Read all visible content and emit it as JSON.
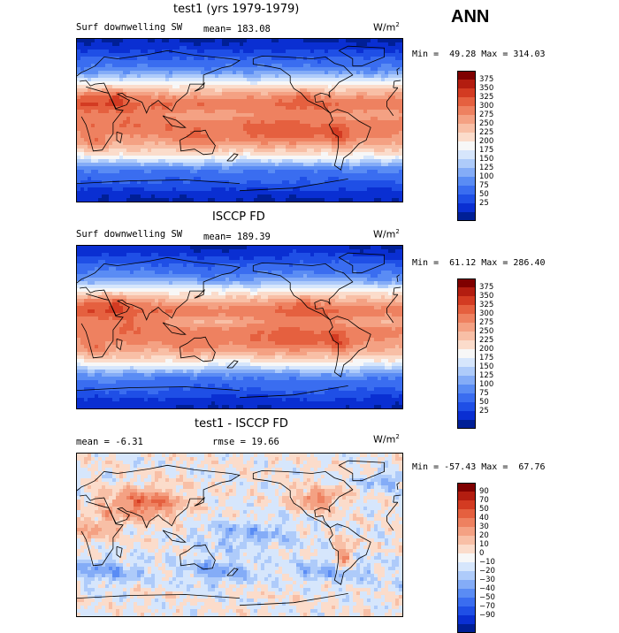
{
  "season": "ANN",
  "palette_sw": [
    "#001f96",
    "#0a2fd2",
    "#1f4fe6",
    "#3a6df0",
    "#5a8cf4",
    "#84acf7",
    "#aecbfa",
    "#d6e6fc",
    "#f7f7f7",
    "#fbdccb",
    "#f8bfa6",
    "#f4a183",
    "#ee8160",
    "#e5603f",
    "#d33b22",
    "#b31d10",
    "#7f0000"
  ],
  "panels": [
    {
      "title": "test1 (yrs 1979-1979)",
      "left_text": "Surf downwelling SW",
      "mid_text": "mean= 183.08",
      "units_base": "W/m",
      "units_exp": "2",
      "minmax": "Min =  49.28 Max = 314.03",
      "kind": "model"
    },
    {
      "title": "ISCCP FD",
      "left_text": "Surf downwelling SW",
      "mid_text": "mean= 189.39",
      "units_base": "W/m",
      "units_exp": "2",
      "minmax": "Min =  61.12 Max = 286.40",
      "kind": "obs"
    },
    {
      "title": "test1 - ISCCP FD",
      "left_text": "mean =  -6.31",
      "mid_text": "rmse =  19.66",
      "units_base": "W/m",
      "units_exp": "2",
      "minmax": "Min = -57.43 Max =  67.76",
      "kind": "diff"
    }
  ],
  "colorbars": [
    {
      "labels": [
        "375",
        "350",
        "325",
        "300",
        "275",
        "250",
        "225",
        "200",
        "175",
        "150",
        "125",
        "100",
        "75",
        "50",
        "25"
      ],
      "colors": [
        "#7f0000",
        "#b31d10",
        "#d33b22",
        "#e5603f",
        "#ee8160",
        "#f4a183",
        "#f8bfa6",
        "#fbdccb",
        "#f7f7f7",
        "#d6e6fc",
        "#aecbfa",
        "#84acf7",
        "#5a8cf4",
        "#3a6df0",
        "#1f4fe6",
        "#0a2fd2",
        "#001f96"
      ]
    },
    {
      "labels": [
        "375",
        "350",
        "325",
        "300",
        "275",
        "250",
        "225",
        "200",
        "175",
        "150",
        "125",
        "100",
        "75",
        "50",
        "25"
      ],
      "colors": [
        "#7f0000",
        "#b31d10",
        "#d33b22",
        "#e5603f",
        "#ee8160",
        "#f4a183",
        "#f8bfa6",
        "#fbdccb",
        "#f7f7f7",
        "#d6e6fc",
        "#aecbfa",
        "#84acf7",
        "#5a8cf4",
        "#3a6df0",
        "#1f4fe6",
        "#0a2fd2",
        "#001f96"
      ]
    },
    {
      "labels": [
        "90",
        "70",
        "50",
        "40",
        "30",
        "20",
        "10",
        "0",
        "−10",
        "−20",
        "−30",
        "−40",
        "−50",
        "−70",
        "−90"
      ],
      "colors": [
        "#7f0000",
        "#b31d10",
        "#d33b22",
        "#e5603f",
        "#ee8160",
        "#f4a183",
        "#f8bfa6",
        "#fbdccb",
        "#f7f7f7",
        "#d6e6fc",
        "#aecbfa",
        "#84acf7",
        "#5a8cf4",
        "#3a6df0",
        "#1f4fe6",
        "#0a2fd2",
        "#001f96"
      ]
    }
  ]
}
